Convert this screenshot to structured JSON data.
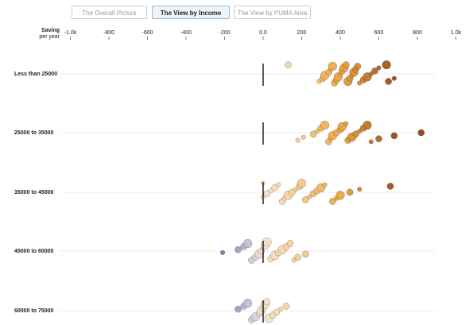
{
  "tabs": {
    "items": [
      "The Overall Picture",
      "The View by Income",
      "The View by PUMA Area"
    ],
    "active": 1
  },
  "chart_data": {
    "type": "beeswarm",
    "axis_label": "Saving",
    "axis_sublabel": "per year",
    "xlim": [
      -1000,
      1000
    ],
    "xticks": [
      {
        "value": -1000,
        "label": "-1.0k"
      },
      -800,
      -600,
      -400,
      -200,
      {
        "value": 0,
        "label": "0.0"
      },
      200,
      400,
      600,
      800,
      {
        "value": 1000,
        "label": "1.0k"
      }
    ],
    "color_stops": [
      {
        "value": -200,
        "color": "#6f6fa8"
      },
      {
        "value": -60,
        "color": "#c9c9dd"
      },
      {
        "value": 0,
        "color": "#f3e3cc"
      },
      {
        "value": 150,
        "color": "#f5cf9a"
      },
      {
        "value": 400,
        "color": "#e8a23c"
      },
      {
        "value": 700,
        "color": "#8b3a0a"
      }
    ],
    "series": [
      {
        "name": "Less than 25000",
        "values": [
          130,
          290,
          310,
          320,
          340,
          350,
          360,
          370,
          380,
          390,
          400,
          410,
          420,
          430,
          440,
          450,
          460,
          470,
          480,
          490,
          500,
          520,
          540,
          560,
          580,
          600,
          640,
          650,
          680
        ],
        "sizes": [
          2,
          1,
          2,
          3,
          2,
          1,
          3,
          2,
          2,
          3,
          1,
          2,
          3,
          2,
          3,
          2,
          1,
          3,
          2,
          2,
          1,
          2,
          3,
          1,
          2,
          1,
          3,
          2,
          1
        ]
      },
      {
        "name": "25000 to 35000",
        "values": [
          180,
          210,
          260,
          280,
          300,
          320,
          340,
          350,
          360,
          380,
          400,
          410,
          430,
          440,
          460,
          480,
          500,
          520,
          540,
          560,
          600,
          680,
          820
        ],
        "sizes": [
          1,
          1,
          2,
          1,
          2,
          3,
          2,
          1,
          3,
          2,
          2,
          3,
          1,
          2,
          3,
          2,
          1,
          2,
          3,
          1,
          2,
          2,
          2
        ]
      },
      {
        "name": "35000 to 45000",
        "values": [
          0,
          20,
          40,
          60,
          80,
          100,
          110,
          130,
          150,
          170,
          190,
          200,
          220,
          240,
          260,
          280,
          300,
          320,
          360,
          380,
          400,
          450,
          500,
          660,
          0
        ],
        "sizes": [
          1,
          2,
          1,
          2,
          1,
          2,
          1,
          3,
          2,
          1,
          2,
          3,
          2,
          1,
          2,
          2,
          3,
          1,
          2,
          1,
          3,
          2,
          1,
          2,
          1
        ]
      },
      {
        "name": "45000 to 60000",
        "values": [
          -210,
          -130,
          -100,
          -80,
          -60,
          -40,
          -20,
          -10,
          0,
          10,
          20,
          40,
          60,
          80,
          100,
          120,
          140,
          160,
          180,
          220
        ],
        "sizes": [
          1,
          2,
          2,
          3,
          2,
          2,
          3,
          2,
          1,
          3,
          3,
          2,
          3,
          2,
          3,
          2,
          2,
          1,
          2,
          2
        ]
      },
      {
        "name": "60000 to 75000",
        "values": [
          -130,
          -100,
          -80,
          -60,
          -40,
          -20,
          -10,
          0,
          10,
          20,
          30,
          50,
          70,
          90,
          120
        ],
        "sizes": [
          2,
          2,
          3,
          2,
          3,
          2,
          3,
          2,
          3,
          2,
          3,
          2,
          2,
          1,
          2
        ]
      }
    ]
  }
}
